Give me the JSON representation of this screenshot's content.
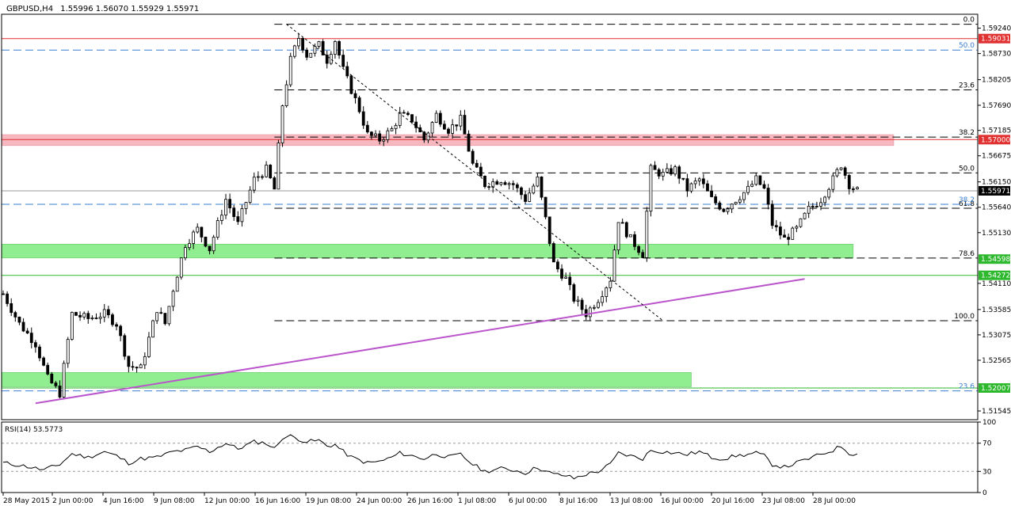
{
  "header": {
    "symbol": "GBPUSD,H4",
    "ohlc": "1.55996 1.56070 1.55929 1.55971"
  },
  "colors": {
    "candle": "#000000",
    "resistance_zone": "#f7b8c0",
    "support_zone": "#90ee90",
    "trendline": "#bb55cc",
    "fib_dashed": "#000000",
    "fib_blue": "#3a7fd0",
    "red_level": "#e03030",
    "green_level": "#2db82d"
  },
  "chart_data": {
    "type": "candlestick",
    "ylim": [
      1.5137,
      1.5952
    ],
    "x_ticks": [
      "28 May 2015",
      "2 Jun 00:00",
      "4 Jun 16:00",
      "9 Jun 08:00",
      "12 Jun 00:00",
      "16 Jun 16:00",
      "19 Jun 08:00",
      "24 Jun 00:00",
      "26 Jun 16:00",
      "1 Jul 08:00",
      "6 Jul 00:00",
      "8 Jul 16:00",
      "13 Jul 08:00",
      "16 Jul 00:00",
      "20 Jul 16:00",
      "23 Jul 08:00",
      "28 Jul 00:00"
    ],
    "y_ticks": [
      "1.59240",
      "1.58730",
      "1.58205",
      "1.57690",
      "1.57185",
      "1.56675",
      "1.56150",
      "1.55640",
      "1.55130",
      "1.54110",
      "1.53585",
      "1.53075",
      "1.52565",
      "1.51545"
    ],
    "price_tags": [
      {
        "value": 1.59031,
        "label": "1.59031",
        "color": "#e03030"
      },
      {
        "value": 1.57,
        "label": "1.57000",
        "color": "#e03030"
      },
      {
        "value": 1.55971,
        "label": "1.55971",
        "color": "#000000"
      },
      {
        "value": 1.54598,
        "label": "1.54598",
        "color": "#2db82d"
      },
      {
        "value": 1.54272,
        "label": "1.54272",
        "color": "#2db82d"
      },
      {
        "value": 1.52007,
        "label": "1.52007",
        "color": "#2db82d"
      }
    ],
    "fib_levels_major": [
      {
        "label": "0.0",
        "value": 1.5932
      },
      {
        "label": "23.6",
        "value": 1.58
      },
      {
        "label": "38.2",
        "value": 1.5705
      },
      {
        "label": "50.0",
        "value": 1.5633
      },
      {
        "label": "61.8",
        "value": 1.5562
      },
      {
        "label": "78.6",
        "value": 1.5462
      },
      {
        "label": "100.0",
        "value": 1.5336
      }
    ],
    "fib_levels_blue": [
      {
        "label": "50.0",
        "value": 1.588
      },
      {
        "label": "38.2",
        "value": 1.557
      },
      {
        "label": "23.6",
        "value": 1.5195
      }
    ],
    "zones": [
      {
        "name": "resistance",
        "from": 1.5688,
        "to": 1.571,
        "start_bar": 0,
        "end_bar": 220
      },
      {
        "name": "support-upper",
        "from": 1.5462,
        "to": 1.549,
        "start_bar": 0,
        "end_bar": 210
      },
      {
        "name": "support-lower",
        "from": 1.5203,
        "to": 1.5232,
        "start_bar": 0,
        "end_bar": 170
      }
    ],
    "horizontal_lines": [
      {
        "value": 1.59031,
        "color": "#e03030"
      },
      {
        "value": 1.57,
        "color": "#e03030"
      },
      {
        "value": 1.55971,
        "color": "#999999"
      },
      {
        "value": 1.54272,
        "color": "#2db82d"
      },
      {
        "value": 1.52007,
        "color": "#2db82d"
      }
    ],
    "trendline": {
      "from": {
        "bar": 8,
        "value": 1.517
      },
      "to": {
        "bar": 198,
        "value": 1.542
      }
    },
    "diag_dashed": {
      "from": {
        "bar": 70,
        "value": 1.5932
      },
      "to": {
        "bar": 163,
        "value": 1.5336
      }
    },
    "close_path": [
      [
        0,
        1.539
      ],
      [
        4,
        1.533
      ],
      [
        8,
        1.529
      ],
      [
        11,
        1.522
      ],
      [
        14,
        1.519
      ],
      [
        17,
        1.535
      ],
      [
        21,
        1.534
      ],
      [
        25,
        1.535
      ],
      [
        28,
        1.533
      ],
      [
        31,
        1.5245
      ],
      [
        34,
        1.524
      ],
      [
        38,
        1.536
      ],
      [
        40,
        1.533
      ],
      [
        42,
        1.54
      ],
      [
        45,
        1.549
      ],
      [
        48,
        1.552
      ],
      [
        51,
        1.548
      ],
      [
        55,
        1.558
      ],
      [
        58,
        1.553
      ],
      [
        62,
        1.562
      ],
      [
        65,
        1.564
      ],
      [
        67,
        1.56
      ],
      [
        69,
        1.577
      ],
      [
        71,
        1.586
      ],
      [
        73,
        1.5905
      ],
      [
        75,
        1.587
      ],
      [
        78,
        1.589
      ],
      [
        80,
        1.586
      ],
      [
        82,
        1.59
      ],
      [
        84,
        1.584
      ],
      [
        86,
        1.58
      ],
      [
        88,
        1.576
      ],
      [
        90,
        1.571
      ],
      [
        93,
        1.57
      ],
      [
        96,
        1.572
      ],
      [
        98,
        1.575
      ],
      [
        101,
        1.574
      ],
      [
        104,
        1.57
      ],
      [
        107,
        1.575
      ],
      [
        110,
        1.572
      ],
      [
        113,
        1.574
      ],
      [
        116,
        1.565
      ],
      [
        119,
        1.561
      ],
      [
        123,
        1.562
      ],
      [
        126,
        1.561
      ],
      [
        129,
        1.558
      ],
      [
        132,
        1.562
      ],
      [
        134,
        1.554
      ],
      [
        136,
        1.545
      ],
      [
        139,
        1.542
      ],
      [
        141,
        1.538
      ],
      [
        144,
        1.535
      ],
      [
        147,
        1.538
      ],
      [
        150,
        1.542
      ],
      [
        152,
        1.554
      ],
      [
        155,
        1.55
      ],
      [
        158,
        1.547
      ],
      [
        160,
        1.564
      ],
      [
        163,
        1.563
      ],
      [
        166,
        1.564
      ],
      [
        169,
        1.56
      ],
      [
        172,
        1.562
      ],
      [
        175,
        1.558
      ],
      [
        178,
        1.556
      ],
      [
        181,
        1.558
      ],
      [
        184,
        1.56
      ],
      [
        186,
        1.562
      ],
      [
        188,
        1.56
      ],
      [
        190,
        1.553
      ],
      [
        193,
        1.55
      ],
      [
        196,
        1.552
      ],
      [
        199,
        1.556
      ],
      [
        202,
        1.558
      ],
      [
        205,
        1.562
      ],
      [
        207,
        1.565
      ],
      [
        209,
        1.561
      ],
      [
        211,
        1.5597
      ]
    ],
    "rsi": {
      "label": "RSI(14) 53.5773",
      "ylim": [
        0,
        100
      ],
      "ticks": [
        "100",
        "70",
        "30",
        "0"
      ],
      "levels": [
        70,
        30
      ],
      "path": [
        [
          0,
          42
        ],
        [
          5,
          38
        ],
        [
          10,
          32
        ],
        [
          14,
          40
        ],
        [
          17,
          55
        ],
        [
          21,
          50
        ],
        [
          25,
          58
        ],
        [
          28,
          52
        ],
        [
          31,
          42
        ],
        [
          34,
          48
        ],
        [
          38,
          50
        ],
        [
          42,
          58
        ],
        [
          45,
          60
        ],
        [
          48,
          65
        ],
        [
          51,
          58
        ],
        [
          55,
          70
        ],
        [
          58,
          62
        ],
        [
          62,
          72
        ],
        [
          65,
          70
        ],
        [
          67,
          62
        ],
        [
          69,
          78
        ],
        [
          71,
          80
        ],
        [
          73,
          76
        ],
        [
          75,
          72
        ],
        [
          78,
          74
        ],
        [
          80,
          66
        ],
        [
          82,
          68
        ],
        [
          84,
          58
        ],
        [
          86,
          50
        ],
        [
          88,
          46
        ],
        [
          90,
          42
        ],
        [
          93,
          44
        ],
        [
          96,
          50
        ],
        [
          98,
          56
        ],
        [
          101,
          52
        ],
        [
          104,
          48
        ],
        [
          107,
          55
        ],
        [
          110,
          50
        ],
        [
          113,
          54
        ],
        [
          116,
          40
        ],
        [
          119,
          30
        ],
        [
          123,
          34
        ],
        [
          126,
          32
        ],
        [
          129,
          28
        ],
        [
          132,
          36
        ],
        [
          134,
          30
        ],
        [
          136,
          26
        ],
        [
          139,
          24
        ],
        [
          141,
          20
        ],
        [
          144,
          26
        ],
        [
          147,
          30
        ],
        [
          150,
          40
        ],
        [
          152,
          56
        ],
        [
          155,
          52
        ],
        [
          158,
          48
        ],
        [
          160,
          60
        ],
        [
          163,
          58
        ],
        [
          166,
          56
        ],
        [
          169,
          54
        ],
        [
          172,
          58
        ],
        [
          175,
          50
        ],
        [
          178,
          48
        ],
        [
          181,
          52
        ],
        [
          184,
          54
        ],
        [
          186,
          56
        ],
        [
          188,
          52
        ],
        [
          190,
          40
        ],
        [
          193,
          36
        ],
        [
          196,
          42
        ],
        [
          199,
          48
        ],
        [
          202,
          54
        ],
        [
          205,
          60
        ],
        [
          207,
          66
        ],
        [
          209,
          56
        ],
        [
          211,
          54
        ]
      ]
    }
  }
}
